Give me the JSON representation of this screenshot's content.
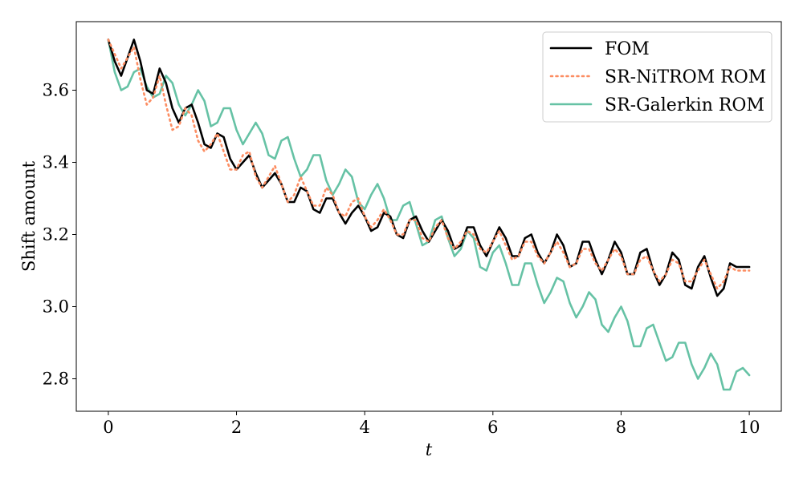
{
  "chart_data": {
    "type": "line",
    "xlabel": "t",
    "ylabel": "Shift amount",
    "xlim": [
      -0.5,
      10.5
    ],
    "ylim": [
      2.71,
      3.79
    ],
    "xticks": [
      0,
      2,
      4,
      6,
      8,
      10
    ],
    "xtick_labels": [
      "0",
      "2",
      "4",
      "6",
      "8",
      "10"
    ],
    "yticks": [
      2.8,
      3.0,
      3.2,
      3.4,
      3.6
    ],
    "ytick_labels": [
      "2.8",
      "3.0",
      "3.2",
      "3.4",
      "3.6"
    ],
    "grid": false,
    "legend_position": "top-right",
    "series": [
      {
        "name": "FOM",
        "color": "#000000",
        "style": "solid",
        "x": [
          0,
          0.1,
          0.2,
          0.3,
          0.4,
          0.5,
          0.6,
          0.7,
          0.8,
          0.9,
          1.0,
          1.1,
          1.2,
          1.3,
          1.4,
          1.5,
          1.6,
          1.7,
          1.8,
          1.9,
          2.0,
          2.1,
          2.2,
          2.3,
          2.4,
          2.5,
          2.6,
          2.7,
          2.8,
          2.9,
          3.0,
          3.1,
          3.2,
          3.3,
          3.4,
          3.5,
          3.6,
          3.7,
          3.8,
          3.9,
          4.0,
          4.1,
          4.2,
          4.3,
          4.4,
          4.5,
          4.6,
          4.7,
          4.8,
          4.9,
          5.0,
          5.1,
          5.2,
          5.3,
          5.4,
          5.5,
          5.6,
          5.7,
          5.8,
          5.9,
          6.0,
          6.1,
          6.2,
          6.3,
          6.4,
          6.5,
          6.6,
          6.7,
          6.8,
          6.9,
          7.0,
          7.1,
          7.2,
          7.3,
          7.4,
          7.5,
          7.6,
          7.7,
          7.8,
          7.9,
          8.0,
          8.1,
          8.2,
          8.3,
          8.4,
          8.5,
          8.6,
          8.7,
          8.8,
          8.9,
          9.0,
          9.1,
          9.2,
          9.3,
          9.4,
          9.5,
          9.6,
          9.7,
          9.8,
          9.9,
          10.0
        ],
        "y": [
          3.74,
          3.68,
          3.64,
          3.69,
          3.74,
          3.68,
          3.6,
          3.59,
          3.66,
          3.62,
          3.55,
          3.51,
          3.55,
          3.56,
          3.51,
          3.45,
          3.44,
          3.48,
          3.47,
          3.41,
          3.38,
          3.4,
          3.42,
          3.37,
          3.33,
          3.35,
          3.37,
          3.34,
          3.29,
          3.29,
          3.33,
          3.32,
          3.27,
          3.26,
          3.3,
          3.3,
          3.26,
          3.23,
          3.26,
          3.28,
          3.25,
          3.21,
          3.22,
          3.26,
          3.25,
          3.2,
          3.19,
          3.24,
          3.25,
          3.21,
          3.18,
          3.21,
          3.24,
          3.21,
          3.16,
          3.17,
          3.22,
          3.22,
          3.17,
          3.14,
          3.18,
          3.22,
          3.19,
          3.14,
          3.14,
          3.19,
          3.2,
          3.15,
          3.12,
          3.15,
          3.2,
          3.17,
          3.11,
          3.12,
          3.18,
          3.18,
          3.13,
          3.09,
          3.13,
          3.18,
          3.15,
          3.09,
          3.09,
          3.15,
          3.16,
          3.1,
          3.06,
          3.09,
          3.15,
          3.13,
          3.06,
          3.05,
          3.11,
          3.14,
          3.08,
          3.03,
          3.05,
          3.12,
          3.11,
          3.11,
          3.11
        ]
      },
      {
        "name": "SR-NiTROM ROM",
        "color": "#fc8d62",
        "style": "dotted",
        "x": [
          0,
          0.1,
          0.2,
          0.3,
          0.4,
          0.5,
          0.6,
          0.7,
          0.8,
          0.9,
          1.0,
          1.1,
          1.2,
          1.3,
          1.4,
          1.5,
          1.6,
          1.7,
          1.8,
          1.9,
          2.0,
          2.1,
          2.2,
          2.3,
          2.4,
          2.5,
          2.6,
          2.7,
          2.8,
          2.9,
          3.0,
          3.1,
          3.2,
          3.3,
          3.4,
          3.5,
          3.6,
          3.7,
          3.8,
          3.9,
          4.0,
          4.1,
          4.2,
          4.3,
          4.4,
          4.5,
          4.6,
          4.7,
          4.8,
          4.9,
          5.0,
          5.1,
          5.2,
          5.3,
          5.4,
          5.5,
          5.6,
          5.7,
          5.8,
          5.9,
          6.0,
          6.1,
          6.2,
          6.3,
          6.4,
          6.5,
          6.6,
          6.7,
          6.8,
          6.9,
          7.0,
          7.1,
          7.2,
          7.3,
          7.4,
          7.5,
          7.6,
          7.7,
          7.8,
          7.9,
          8.0,
          8.1,
          8.2,
          8.3,
          8.4,
          8.5,
          8.6,
          8.7,
          8.8,
          8.9,
          9.0,
          9.1,
          9.2,
          9.3,
          9.4,
          9.5,
          9.6,
          9.7,
          9.8,
          9.9,
          10.0
        ],
        "y": [
          3.74,
          3.7,
          3.66,
          3.69,
          3.72,
          3.63,
          3.56,
          3.58,
          3.64,
          3.56,
          3.49,
          3.5,
          3.55,
          3.53,
          3.46,
          3.43,
          3.45,
          3.48,
          3.43,
          3.38,
          3.38,
          3.42,
          3.43,
          3.36,
          3.33,
          3.36,
          3.39,
          3.34,
          3.29,
          3.31,
          3.36,
          3.32,
          3.28,
          3.28,
          3.33,
          3.31,
          3.26,
          3.25,
          3.29,
          3.3,
          3.25,
          3.22,
          3.24,
          3.27,
          3.24,
          3.2,
          3.2,
          3.24,
          3.24,
          3.19,
          3.18,
          3.22,
          3.24,
          3.19,
          3.16,
          3.18,
          3.21,
          3.2,
          3.16,
          3.15,
          3.18,
          3.21,
          3.17,
          3.13,
          3.14,
          3.18,
          3.18,
          3.14,
          3.12,
          3.15,
          3.18,
          3.15,
          3.11,
          3.12,
          3.16,
          3.16,
          3.12,
          3.1,
          3.13,
          3.16,
          3.14,
          3.09,
          3.09,
          3.13,
          3.14,
          3.1,
          3.07,
          3.09,
          3.13,
          3.12,
          3.07,
          3.07,
          3.1,
          3.13,
          3.09,
          3.05,
          3.07,
          3.11,
          3.1,
          3.1,
          3.1
        ]
      },
      {
        "name": "SR-Galerkin ROM",
        "color": "#66c2a5",
        "style": "solid",
        "x": [
          0,
          0.1,
          0.2,
          0.3,
          0.4,
          0.5,
          0.6,
          0.7,
          0.8,
          0.9,
          1.0,
          1.1,
          1.2,
          1.3,
          1.4,
          1.5,
          1.6,
          1.7,
          1.8,
          1.9,
          2.0,
          2.1,
          2.2,
          2.3,
          2.4,
          2.5,
          2.6,
          2.7,
          2.8,
          2.9,
          3.0,
          3.1,
          3.2,
          3.3,
          3.4,
          3.5,
          3.6,
          3.7,
          3.8,
          3.9,
          4.0,
          4.1,
          4.2,
          4.3,
          4.4,
          4.5,
          4.6,
          4.7,
          4.8,
          4.9,
          5.0,
          5.1,
          5.2,
          5.3,
          5.4,
          5.5,
          5.6,
          5.7,
          5.8,
          5.9,
          6.0,
          6.1,
          6.2,
          6.3,
          6.4,
          6.5,
          6.6,
          6.7,
          6.8,
          6.9,
          7.0,
          7.1,
          7.2,
          7.3,
          7.4,
          7.5,
          7.6,
          7.7,
          7.8,
          7.9,
          8.0,
          8.1,
          8.2,
          8.3,
          8.4,
          8.5,
          8.6,
          8.7,
          8.8,
          8.9,
          9.0,
          9.1,
          9.2,
          9.3,
          9.4,
          9.5,
          9.6,
          9.7,
          9.8,
          9.9,
          10.0
        ],
        "y": [
          3.74,
          3.65,
          3.6,
          3.61,
          3.65,
          3.66,
          3.61,
          3.58,
          3.59,
          3.64,
          3.62,
          3.56,
          3.53,
          3.56,
          3.6,
          3.57,
          3.5,
          3.51,
          3.55,
          3.55,
          3.49,
          3.45,
          3.48,
          3.51,
          3.48,
          3.42,
          3.41,
          3.46,
          3.47,
          3.41,
          3.36,
          3.38,
          3.42,
          3.42,
          3.35,
          3.31,
          3.34,
          3.38,
          3.36,
          3.29,
          3.27,
          3.31,
          3.34,
          3.3,
          3.24,
          3.24,
          3.28,
          3.29,
          3.23,
          3.17,
          3.18,
          3.24,
          3.25,
          3.19,
          3.14,
          3.16,
          3.21,
          3.19,
          3.11,
          3.1,
          3.15,
          3.17,
          3.12,
          3.06,
          3.06,
          3.12,
          3.12,
          3.06,
          3.01,
          3.04,
          3.08,
          3.07,
          3.01,
          2.97,
          3.0,
          3.04,
          3.02,
          2.95,
          2.93,
          2.97,
          3.0,
          2.96,
          2.89,
          2.89,
          2.94,
          2.95,
          2.9,
          2.85,
          2.86,
          2.9,
          2.9,
          2.84,
          2.8,
          2.83,
          2.87,
          2.84,
          2.77,
          2.77,
          2.82,
          2.83,
          2.81
        ]
      }
    ]
  }
}
